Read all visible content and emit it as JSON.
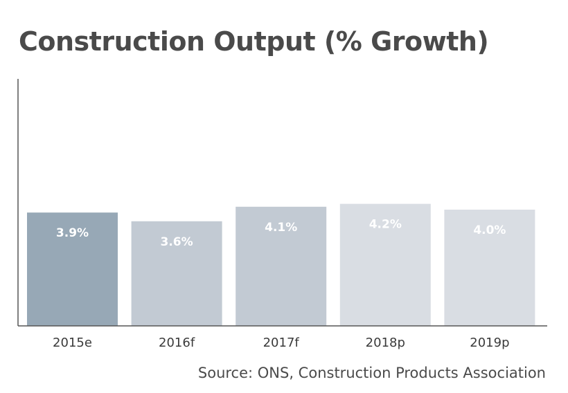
{
  "chart_data": {
    "type": "bar",
    "title": "Construction Output (% Growth)",
    "categories": [
      "2015e",
      "2016f",
      "2017f",
      "2018p",
      "2019p"
    ],
    "values": [
      3.9,
      3.6,
      4.1,
      4.2,
      4.0
    ],
    "value_labels": [
      "3.9%",
      "3.6%",
      "4.1%",
      "4.2%",
      "4.0%"
    ],
    "bar_colors": [
      "#97a8b6",
      "#c2cad3",
      "#c2cad3",
      "#d9dde3",
      "#d9dde3"
    ],
    "xlabel": "",
    "ylabel": "",
    "ylim": [
      0,
      8.5
    ],
    "grid": false,
    "legend": "none",
    "source": "Source: ONS, Construction Products Association"
  }
}
